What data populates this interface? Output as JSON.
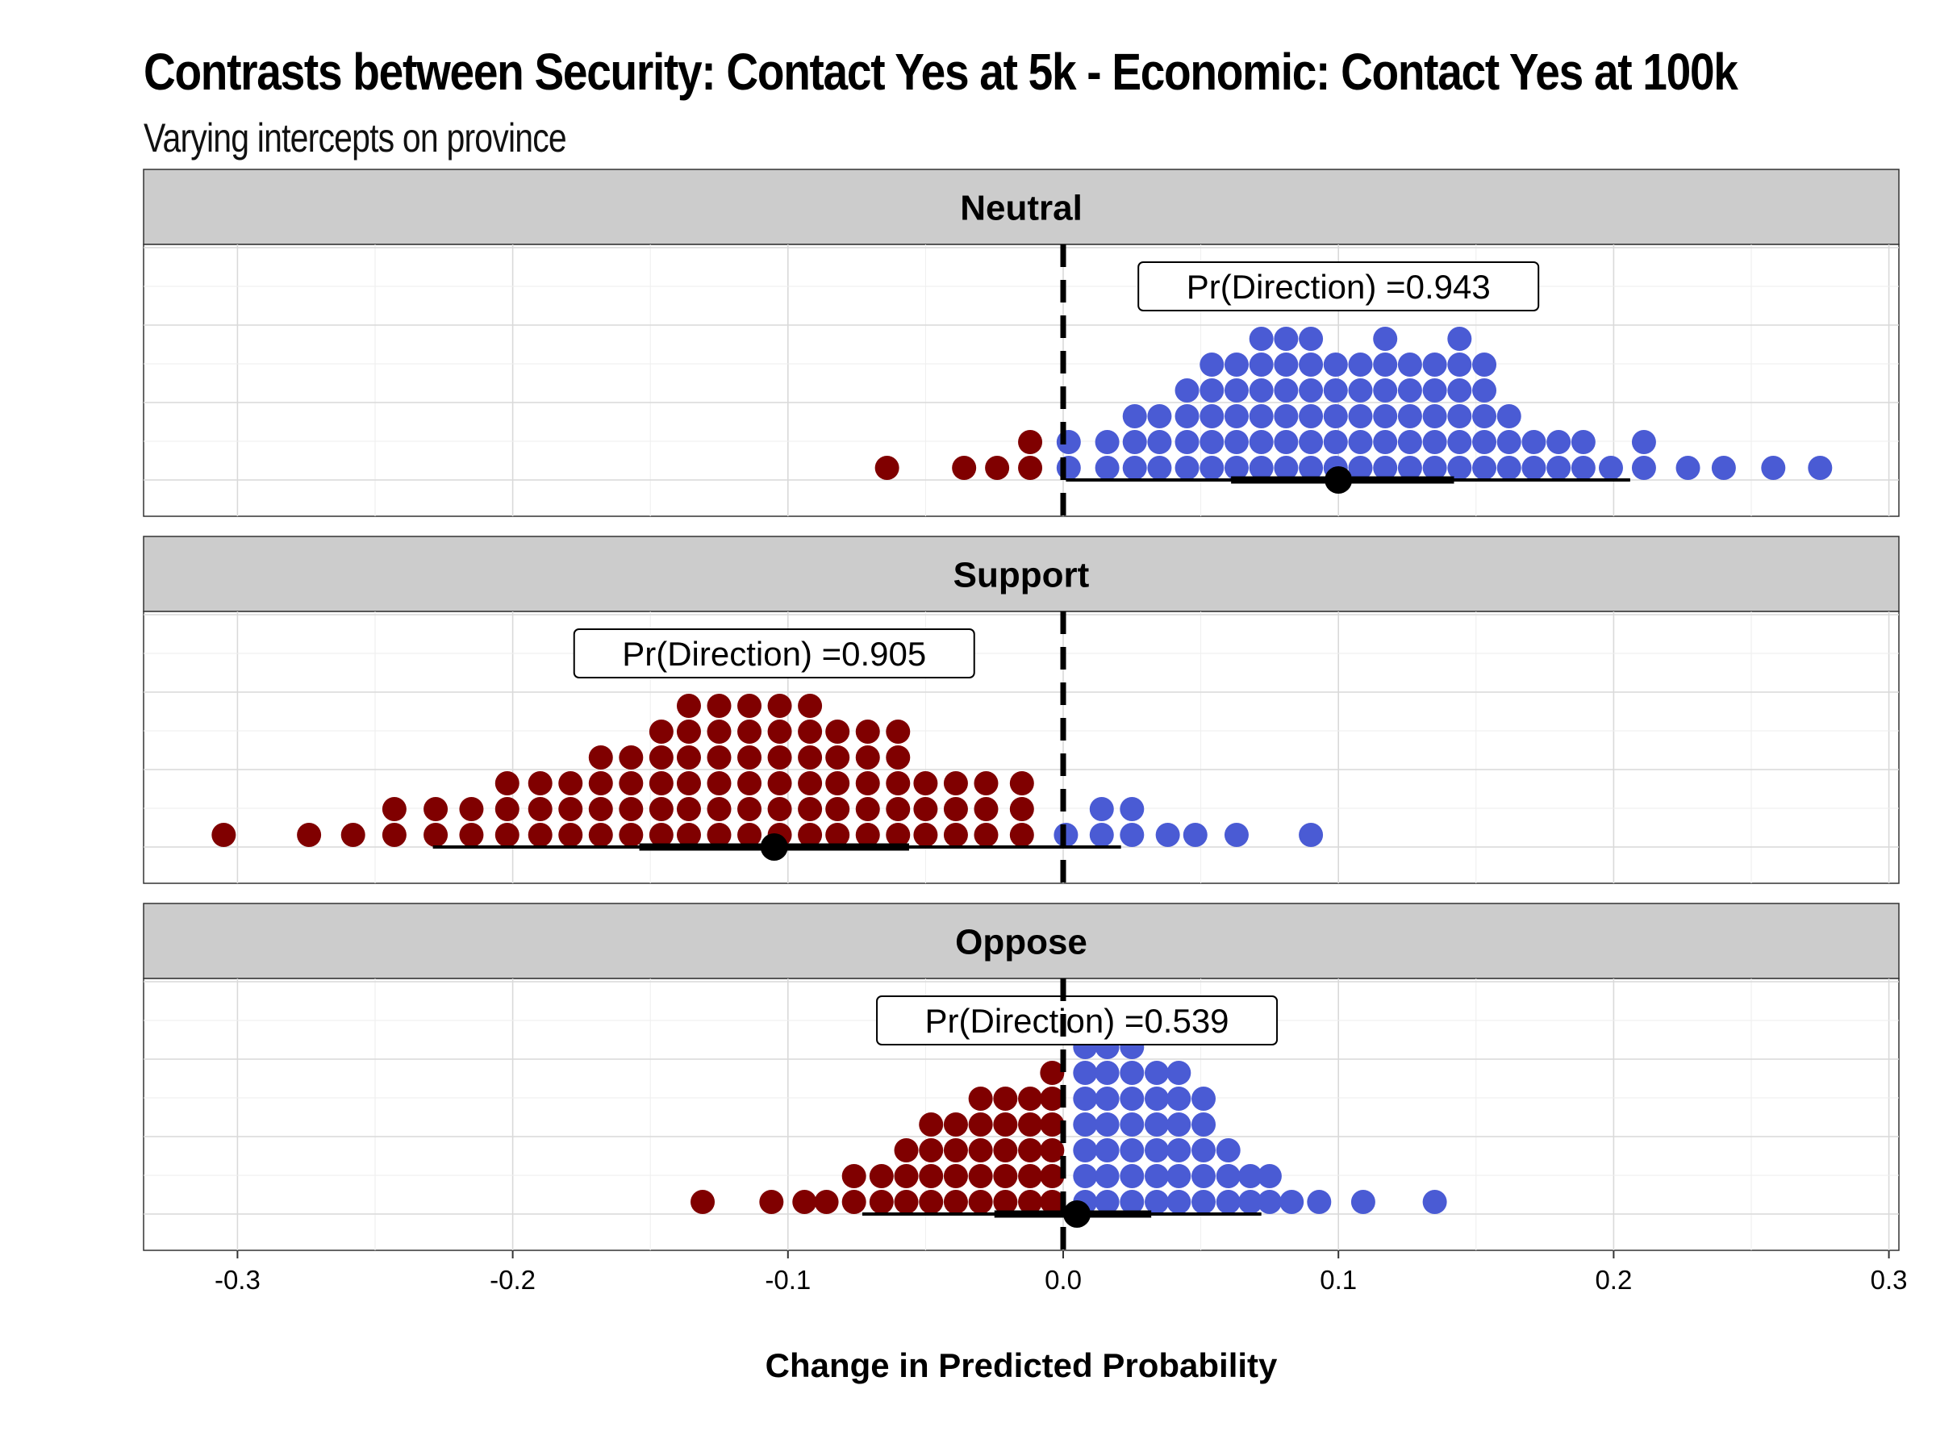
{
  "title": "Contrasts between Security: Contact Yes at 5k - Economic: Contact Yes at 100k",
  "subtitle": "Varying intercepts on province",
  "colors": {
    "negative": "#800000",
    "positive": "#4a5bd4",
    "strip_bg": "#cccccc",
    "grid": "#d9d9d9",
    "point": "#000000"
  },
  "chart_data": {
    "type": "scatter",
    "subtype": "dotplot-with-interval",
    "xlabel": "Change in Predicted Probability",
    "xlim": [
      -0.3,
      0.3
    ],
    "x_ticks": [
      "-0.3",
      "-0.2",
      "-0.1",
      "0.0",
      "0.1",
      "0.2",
      "0.3"
    ],
    "reference_line": 0,
    "facets": [
      {
        "label": "Neutral",
        "annotation": "Pr(Direction) =0.943",
        "point_estimate": 0.1,
        "interval_inner": [
          0.061,
          0.142
        ],
        "interval_outer": [
          0.001,
          0.206
        ],
        "dot_columns": [
          [
            -0.064,
            1
          ],
          [
            -0.036,
            1
          ],
          [
            -0.024,
            1
          ],
          [
            -0.012,
            2
          ],
          [
            0.002,
            2
          ],
          [
            0.016,
            2
          ],
          [
            0.026,
            3
          ],
          [
            0.035,
            3
          ],
          [
            0.045,
            4
          ],
          [
            0.054,
            5
          ],
          [
            0.063,
            5
          ],
          [
            0.072,
            6
          ],
          [
            0.081,
            6
          ],
          [
            0.09,
            6
          ],
          [
            0.099,
            5
          ],
          [
            0.108,
            5
          ],
          [
            0.117,
            6
          ],
          [
            0.126,
            5
          ],
          [
            0.135,
            5
          ],
          [
            0.144,
            6
          ],
          [
            0.153,
            5
          ],
          [
            0.162,
            3
          ],
          [
            0.171,
            2
          ],
          [
            0.18,
            2
          ],
          [
            0.189,
            2
          ],
          [
            0.199,
            1
          ],
          [
            0.211,
            2
          ],
          [
            0.227,
            1
          ],
          [
            0.24,
            1
          ],
          [
            0.258,
            1
          ],
          [
            0.275,
            1
          ]
        ]
      },
      {
        "label": "Support",
        "annotation": "Pr(Direction) =0.905",
        "point_estimate": -0.105,
        "interval_inner": [
          -0.154,
          -0.056
        ],
        "interval_outer": [
          -0.229,
          0.021
        ],
        "dot_columns": [
          [
            -0.305,
            1
          ],
          [
            -0.274,
            1
          ],
          [
            -0.258,
            1
          ],
          [
            -0.243,
            2
          ],
          [
            -0.228,
            2
          ],
          [
            -0.215,
            2
          ],
          [
            -0.202,
            3
          ],
          [
            -0.19,
            3
          ],
          [
            -0.179,
            3
          ],
          [
            -0.168,
            4
          ],
          [
            -0.157,
            4
          ],
          [
            -0.146,
            5
          ],
          [
            -0.136,
            6
          ],
          [
            -0.125,
            6
          ],
          [
            -0.114,
            6
          ],
          [
            -0.103,
            6
          ],
          [
            -0.092,
            6
          ],
          [
            -0.082,
            5
          ],
          [
            -0.071,
            5
          ],
          [
            -0.06,
            5
          ],
          [
            -0.05,
            3
          ],
          [
            -0.039,
            3
          ],
          [
            -0.028,
            3
          ],
          [
            -0.015,
            3
          ],
          [
            0.001,
            1
          ],
          [
            0.014,
            2
          ],
          [
            0.025,
            2
          ],
          [
            0.038,
            1
          ],
          [
            0.048,
            1
          ],
          [
            0.063,
            1
          ],
          [
            0.09,
            1
          ]
        ]
      },
      {
        "label": "Oppose",
        "annotation": "Pr(Direction) =0.539",
        "point_estimate": 0.005,
        "interval_inner": [
          -0.025,
          0.032
        ],
        "interval_outer": [
          -0.073,
          0.072
        ],
        "dot_columns": [
          [
            -0.131,
            1
          ],
          [
            -0.106,
            1
          ],
          [
            -0.094,
            1
          ],
          [
            -0.086,
            1
          ],
          [
            -0.076,
            2
          ],
          [
            -0.066,
            2
          ],
          [
            -0.057,
            3
          ],
          [
            -0.048,
            4
          ],
          [
            -0.039,
            4
          ],
          [
            -0.03,
            5
          ],
          [
            -0.021,
            5
          ],
          [
            -0.012,
            5
          ],
          [
            -0.004,
            6
          ],
          [
            0.008,
            7
          ],
          [
            0.016,
            7
          ],
          [
            0.025,
            7
          ],
          [
            0.034,
            6
          ],
          [
            0.042,
            6
          ],
          [
            0.051,
            5
          ],
          [
            0.06,
            3
          ],
          [
            0.068,
            2
          ],
          [
            0.075,
            2
          ],
          [
            0.083,
            1
          ],
          [
            0.093,
            1
          ],
          [
            0.109,
            1
          ],
          [
            0.135,
            1
          ]
        ]
      }
    ]
  }
}
